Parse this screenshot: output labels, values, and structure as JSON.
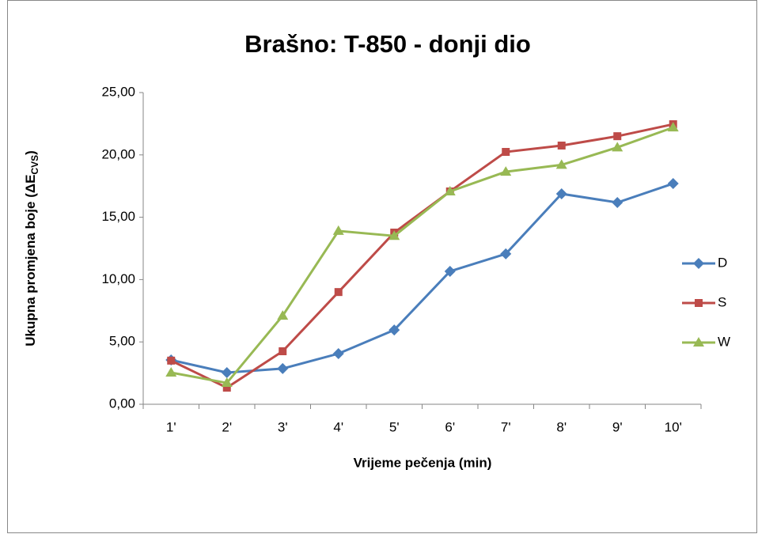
{
  "chart_data": {
    "type": "line",
    "title": "Brašno: T-850 - donji dio",
    "xlabel": "Vrijeme pečenja (min)",
    "ylabel": {
      "text": "Ukupna promjena boje (ΔE",
      "subscript": "CVS",
      "suffix": ")"
    },
    "categories": [
      "1'",
      "2'",
      "3'",
      "4'",
      "5'",
      "6'",
      "7'",
      "8'",
      "9'",
      "10'"
    ],
    "series": [
      {
        "name": "D",
        "color": "#4a7ebb",
        "marker": "diamond",
        "values": [
          3.55,
          2.54,
          2.86,
          4.06,
          5.96,
          10.66,
          12.06,
          16.88,
          16.18,
          17.7
        ]
      },
      {
        "name": "S",
        "color": "#be4b48",
        "marker": "square",
        "values": [
          3.5,
          1.33,
          4.25,
          9.0,
          13.77,
          17.07,
          20.24,
          20.75,
          21.5,
          22.46
        ]
      },
      {
        "name": "W",
        "color": "#98b954",
        "marker": "triangle",
        "values": [
          2.54,
          1.71,
          7.1,
          13.9,
          13.5,
          17.07,
          18.65,
          19.2,
          20.6,
          22.2
        ]
      }
    ],
    "ylim": [
      0,
      25
    ],
    "yticks": [
      {
        "value": 0,
        "label": "0,00"
      },
      {
        "value": 5,
        "label": "5,00"
      },
      {
        "value": 10,
        "label": "10,00"
      },
      {
        "value": 15,
        "label": "15,00"
      },
      {
        "value": 20,
        "label": "20,00"
      },
      {
        "value": 25,
        "label": "25,00"
      }
    ],
    "grid": false,
    "legend": "right"
  }
}
